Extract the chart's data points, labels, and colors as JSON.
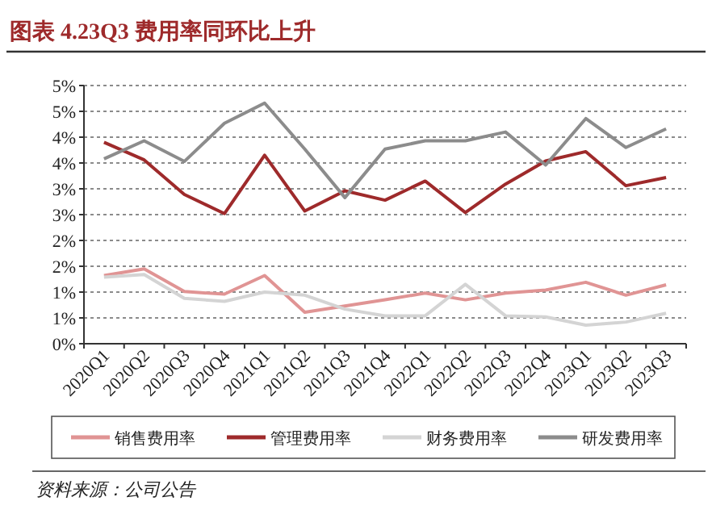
{
  "chart_data": {
    "type": "line",
    "title": "图表 4.23Q3 费用率同环比上升",
    "categories": [
      "2020Q1",
      "2020Q2",
      "2020Q3",
      "2020Q4",
      "2021Q1",
      "2021Q2",
      "2021Q3",
      "2021Q4",
      "2022Q1",
      "2022Q2",
      "2022Q3",
      "2022Q4",
      "2023Q1",
      "2023Q2",
      "2023Q3"
    ],
    "series": [
      {
        "name": "销售费用率",
        "color": "#e09494",
        "values": [
          1.32,
          1.45,
          1.01,
          0.96,
          1.32,
          0.61,
          0.73,
          0.85,
          0.98,
          0.85,
          0.98,
          1.04,
          1.19,
          0.94,
          1.14
        ]
      },
      {
        "name": "管理费用率",
        "color": "#9e2a2b",
        "values": [
          3.9,
          3.56,
          2.89,
          2.52,
          3.65,
          2.57,
          2.96,
          2.78,
          3.15,
          2.54,
          3.09,
          3.54,
          3.72,
          3.06,
          3.22
        ]
      },
      {
        "name": "财务费用率",
        "color": "#d4d4d4",
        "values": [
          1.29,
          1.34,
          0.88,
          0.82,
          1.0,
          0.94,
          0.67,
          0.54,
          0.54,
          1.15,
          0.54,
          0.52,
          0.36,
          0.42,
          0.59
        ]
      },
      {
        "name": "研发费用率",
        "color": "#8c8c8c",
        "values": [
          3.58,
          3.93,
          3.53,
          4.27,
          4.66,
          3.77,
          2.83,
          3.77,
          3.93,
          3.93,
          4.1,
          3.46,
          4.36,
          3.8,
          4.16
        ]
      }
    ],
    "ylim": [
      0,
      5
    ],
    "yticks": [
      {
        "value": 0,
        "label": "0%"
      },
      {
        "value": 0.5,
        "label": "1%"
      },
      {
        "value": 1,
        "label": "1%"
      },
      {
        "value": 1.5,
        "label": "2%"
      },
      {
        "value": 2,
        "label": "2%"
      },
      {
        "value": 2.5,
        "label": "3%"
      },
      {
        "value": 3,
        "label": "3%"
      },
      {
        "value": 3.5,
        "label": "4%"
      },
      {
        "value": 4,
        "label": "4%"
      },
      {
        "value": 4.5,
        "label": "5%"
      },
      {
        "value": 5,
        "label": "5%"
      }
    ],
    "grid": "y",
    "legend": "bottom",
    "marker": "none",
    "line_style": "solid",
    "annotations": [
      "资料来源：公司公告"
    ]
  }
}
